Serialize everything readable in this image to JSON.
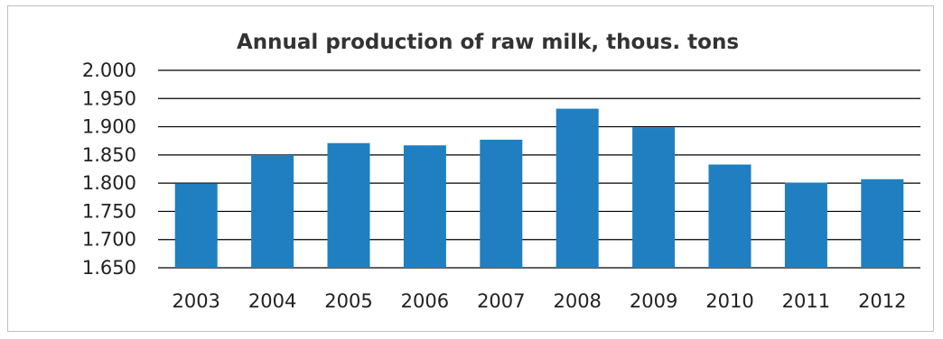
{
  "chart_data": {
    "type": "bar",
    "title": "Annual production of raw milk, thous. tons",
    "xlabel": "",
    "ylabel": "",
    "categories": [
      "2003",
      "2004",
      "2005",
      "2006",
      "2007",
      "2008",
      "2009",
      "2010",
      "2011",
      "2012"
    ],
    "values": [
      1.799,
      1.85,
      1.871,
      1.867,
      1.877,
      1.932,
      1.899,
      1.833,
      1.801,
      1.807
    ],
    "ylim": [
      1.65,
      2.0
    ],
    "yticks": [
      1.65,
      1.7,
      1.75,
      1.8,
      1.85,
      1.9,
      1.95,
      2.0
    ],
    "ytick_labels": [
      "1.650",
      "1.700",
      "1.750",
      "1.800",
      "1.850",
      "1.900",
      "1.950",
      "2.000"
    ],
    "grid": true,
    "legend": "none",
    "bar_color": "#1f7fc0",
    "grid_color": "#000000"
  }
}
